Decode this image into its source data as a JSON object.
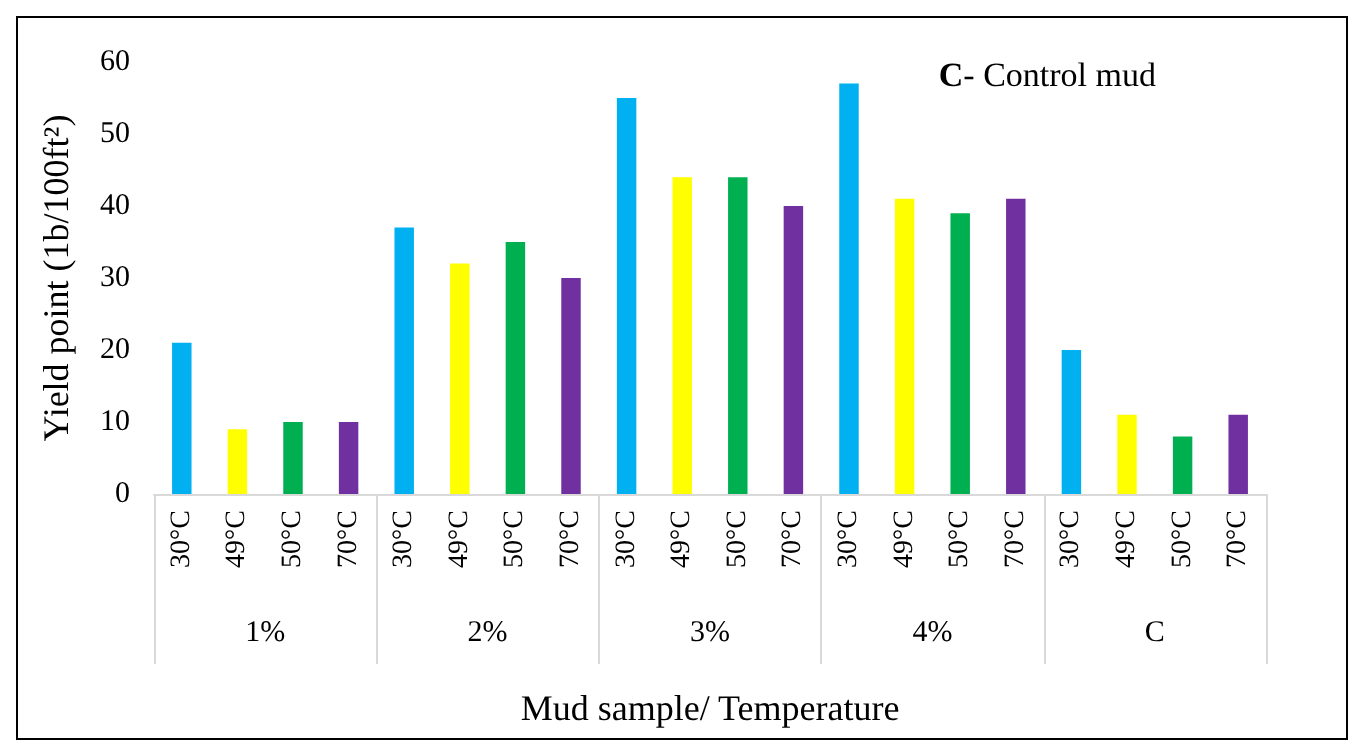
{
  "chart_data": {
    "type": "bar",
    "xlabel": "Mud sample/ Temperature",
    "ylabel": "Yield point (1b/100ft²)",
    "categories": [
      "30°C",
      "49°C",
      "50°C",
      "70°C",
      "30°C",
      "49°C",
      "50°C",
      "70°C",
      "30°C",
      "49°C",
      "50°C",
      "70°C",
      "30°C",
      "49°C",
      "50°C",
      "70°C",
      "30°C",
      "49°C",
      "50°C",
      "70°C"
    ],
    "values": [
      21,
      9,
      10,
      10,
      37,
      32,
      35,
      30,
      55,
      44,
      44,
      40,
      57,
      41,
      39,
      41,
      20,
      11,
      8,
      11
    ],
    "colors": [
      "#00b0f0",
      "#ffff00",
      "#00b050",
      "#7030a0",
      "#00b0f0",
      "#ffff00",
      "#00b050",
      "#7030a0",
      "#00b0f0",
      "#ffff00",
      "#00b050",
      "#7030a0",
      "#00b0f0",
      "#ffff00",
      "#00b050",
      "#7030a0",
      "#00b0f0",
      "#ffff00",
      "#00b050",
      "#7030a0"
    ],
    "ylim": [
      0,
      60
    ],
    "yticks": [
      0,
      10,
      20,
      30,
      40,
      50,
      60
    ],
    "annotations": [
      "C- Control mud",
      "1%",
      "2%",
      "3%",
      "4%",
      "C"
    ]
  }
}
